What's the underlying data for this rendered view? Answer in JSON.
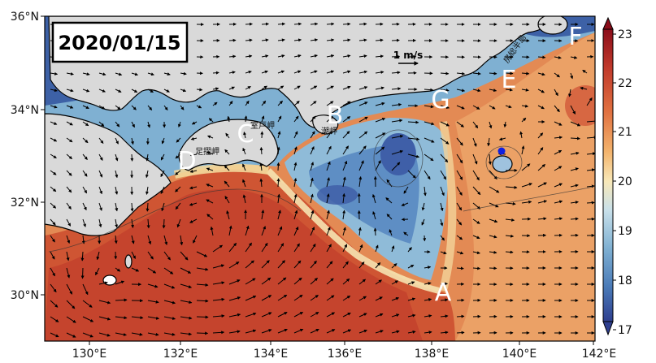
{
  "date_label": "2020/01/15",
  "scale_label": "1 m/s",
  "y_ticks": [
    "36°N",
    "34°N",
    "32°N",
    "30°N"
  ],
  "x_ticks": [
    "130°E",
    "132°E",
    "134°E",
    "136°E",
    "138°E",
    "140°E",
    "142°E"
  ],
  "colorbar": {
    "ticks": [
      "23",
      "22",
      "21",
      "20",
      "19",
      "18",
      "17"
    ],
    "colors": [
      "#8b0d1a",
      "#c0392b",
      "#e07040",
      "#f3b46d",
      "#f8e8b8",
      "#c8e0ea",
      "#7fb0d2",
      "#4a7bb8",
      "#2e3f8f"
    ]
  },
  "point_labels": [
    "A",
    "B",
    "C",
    "D",
    "E",
    "F",
    "G"
  ],
  "cape_labels": [
    "室戸岬",
    "足摺岬",
    "潮岬",
    "房総半島"
  ],
  "marker_color": "#1020e0"
}
